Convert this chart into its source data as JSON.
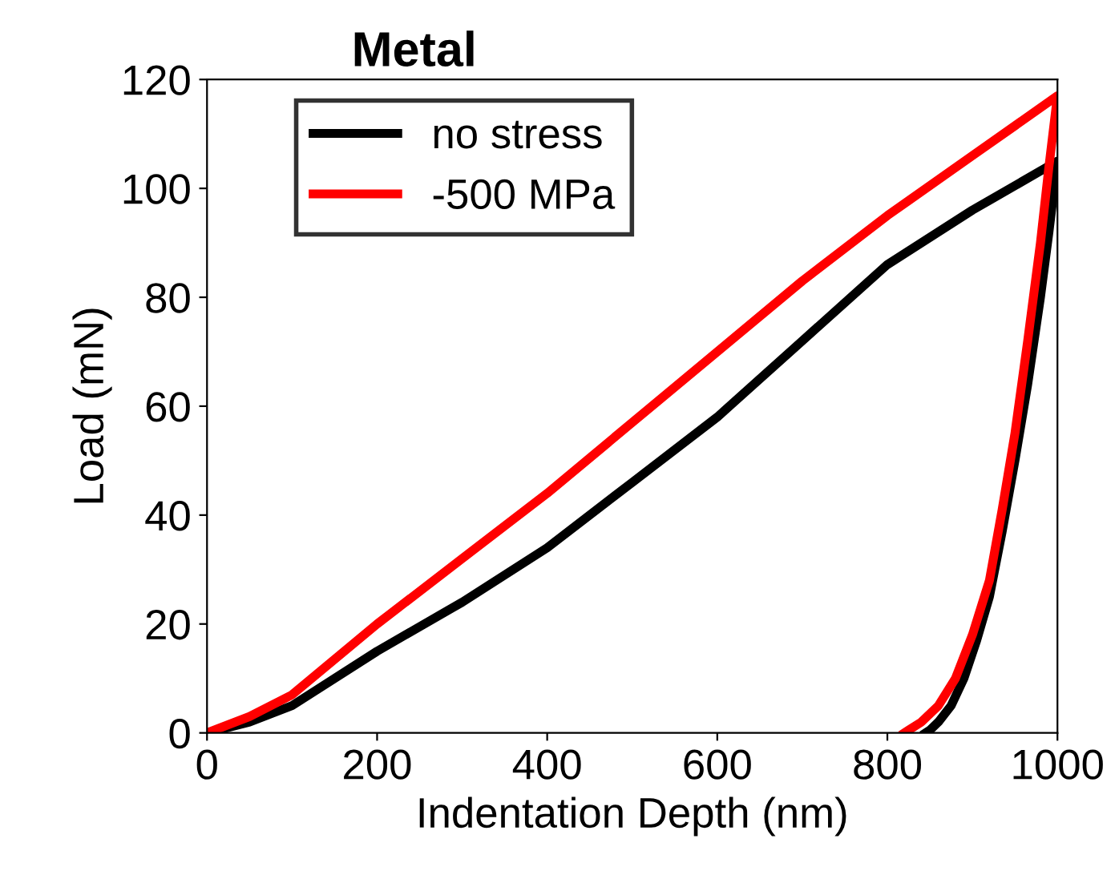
{
  "chart_data": {
    "type": "line",
    "title": "Metal",
    "xlabel": "Indentation Depth (nm)",
    "ylabel": "Load (mN)",
    "xlim": [
      0,
      1000
    ],
    "ylim": [
      0,
      120
    ],
    "xticks": [
      0,
      200,
      400,
      600,
      800,
      1000
    ],
    "yticks": [
      0,
      20,
      40,
      60,
      80,
      100,
      120
    ],
    "grid": false,
    "legend": "top left",
    "marker": "none",
    "line_style": "solid",
    "series": [
      {
        "name": "no stress",
        "color": "#000000",
        "x": [
          0,
          50,
          100,
          200,
          300,
          400,
          500,
          600,
          700,
          800,
          900,
          1000,
          990,
          980,
          965,
          950,
          935,
          920,
          905,
          890,
          875,
          860,
          850,
          845
        ],
        "values": [
          0,
          2,
          5,
          15,
          24,
          34,
          46,
          58,
          72,
          86,
          96,
          105,
          92,
          80,
          64,
          50,
          37,
          25,
          17,
          10,
          5,
          2,
          0.5,
          0
        ]
      },
      {
        "name": "-500 MPa",
        "color": "#ff0000",
        "x": [
          0,
          50,
          100,
          200,
          300,
          400,
          500,
          600,
          700,
          800,
          900,
          1000,
          990,
          980,
          965,
          950,
          935,
          920,
          900,
          880,
          860,
          840,
          825,
          820
        ],
        "values": [
          0,
          3,
          7,
          20,
          32,
          44,
          57,
          70,
          83,
          95,
          106,
          117,
          104,
          90,
          72,
          55,
          41,
          28,
          18,
          10,
          5,
          2,
          0.5,
          0
        ]
      }
    ]
  }
}
